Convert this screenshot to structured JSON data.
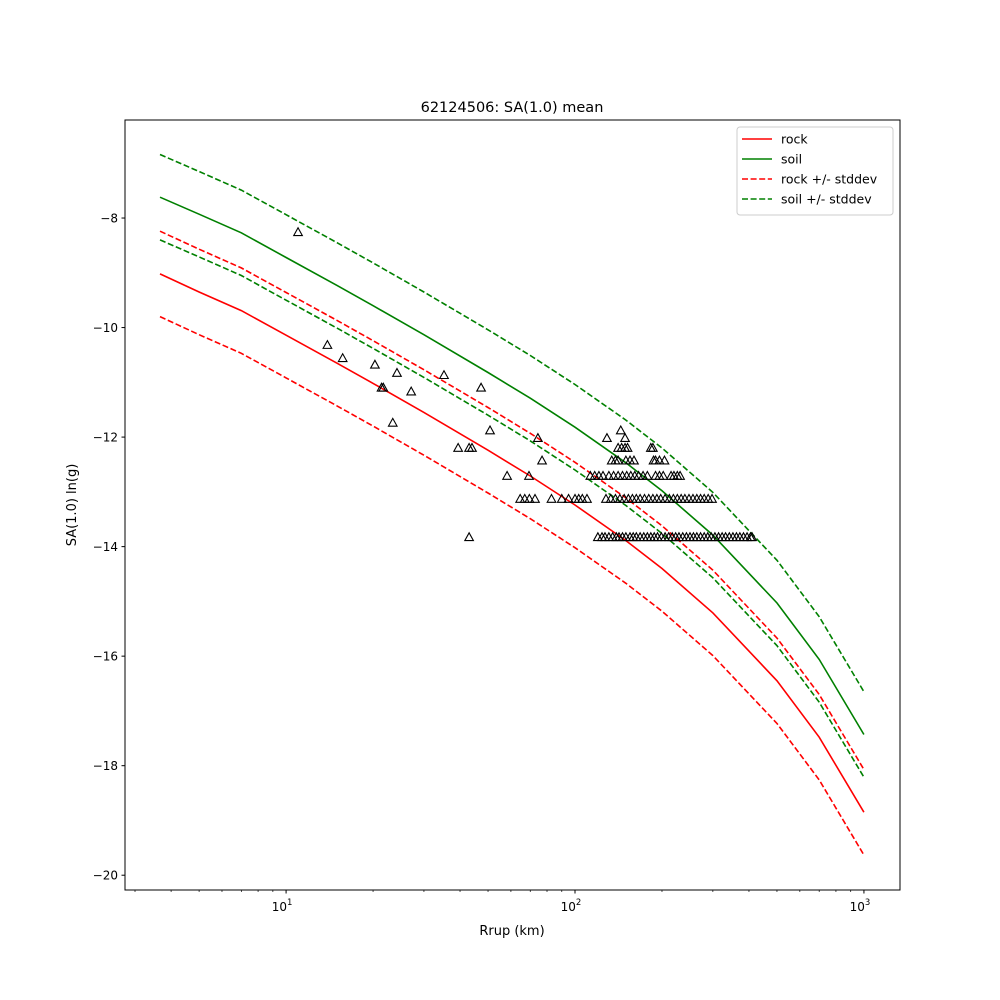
{
  "chart_data": {
    "type": "line",
    "title": "62124506: SA(1.0) mean",
    "xlabel": "Rrup (km)",
    "ylabel": "SA(1.0) ln(g)",
    "xscale": "log",
    "xlim": [
      2.77,
      1333
    ],
    "ylim": [
      -20.27,
      -6.21
    ],
    "xticks": [
      {
        "base": "10",
        "exp": "1",
        "value": 10
      },
      {
        "base": "10",
        "exp": "2",
        "value": 100
      },
      {
        "base": "10",
        "exp": "3",
        "value": 1000
      }
    ],
    "yticks": [
      -8,
      -10,
      -12,
      -14,
      -16,
      -18,
      -20
    ],
    "ytick_labels": [
      "−8",
      "−10",
      "−12",
      "−14",
      "−16",
      "−18",
      "−20"
    ],
    "legend_position": "top-right",
    "x": [
      3.66,
      5,
      7,
      10,
      15,
      20,
      30,
      50,
      70,
      100,
      150,
      200,
      300,
      500,
      700,
      1000
    ],
    "series": [
      {
        "name": "rock",
        "color": "#ff0000",
        "dash": false,
        "values": [
          -9.02,
          -9.35,
          -9.69,
          -10.14,
          -10.65,
          -11.02,
          -11.55,
          -12.24,
          -12.71,
          -13.24,
          -13.89,
          -14.4,
          -15.21,
          -16.45,
          -17.48,
          -18.85
        ]
      },
      {
        "name": "soil",
        "color": "#008000",
        "dash": false,
        "values": [
          -7.62,
          -7.93,
          -8.27,
          -8.72,
          -9.23,
          -9.6,
          -10.13,
          -10.82,
          -11.29,
          -11.82,
          -12.47,
          -12.98,
          -13.79,
          -15.03,
          -16.06,
          -17.43
        ]
      },
      {
        "name": "rock +/- stddev",
        "color": "#ff0000",
        "dash": true,
        "values": [
          -8.24,
          -8.57,
          -8.91,
          -9.36,
          -9.87,
          -10.24,
          -10.77,
          -11.46,
          -11.93,
          -12.46,
          -13.11,
          -13.62,
          -14.43,
          -15.67,
          -16.7,
          -18.07
        ]
      },
      {
        "name": "rock +/- stddev",
        "color": "#ff0000",
        "dash": true,
        "legend": false,
        "values": [
          -9.8,
          -10.13,
          -10.47,
          -10.92,
          -11.43,
          -11.8,
          -12.33,
          -13.02,
          -13.49,
          -14.02,
          -14.67,
          -15.18,
          -15.99,
          -17.23,
          -18.26,
          -19.63
        ]
      },
      {
        "name": "soil +/- stddev",
        "color": "#008000",
        "dash": true,
        "values": [
          -6.84,
          -7.15,
          -7.49,
          -7.94,
          -8.45,
          -8.82,
          -9.35,
          -10.04,
          -10.51,
          -11.04,
          -11.69,
          -12.2,
          -13.01,
          -14.25,
          -15.28,
          -16.65
        ]
      },
      {
        "name": "soil +/- stddev",
        "color": "#008000",
        "dash": true,
        "legend": false,
        "values": [
          -8.4,
          -8.71,
          -9.05,
          -9.5,
          -10.01,
          -10.38,
          -10.91,
          -11.6,
          -12.07,
          -12.6,
          -13.25,
          -13.76,
          -14.57,
          -15.81,
          -16.84,
          -18.21
        ]
      }
    ],
    "legend": [
      "rock",
      "soil",
      "rock +/- stddev",
      "soil +/- stddev"
    ],
    "observations": [
      {
        "y": -8.26,
        "x": [
          11.0
        ]
      },
      {
        "y": -10.32,
        "x": [
          13.9
        ]
      },
      {
        "y": -10.56,
        "x": [
          15.7
        ]
      },
      {
        "y": -10.68,
        "x": [
          20.3
        ]
      },
      {
        "y": -10.83,
        "x": [
          24.2
        ]
      },
      {
        "y": -10.87,
        "x": [
          35.2
        ]
      },
      {
        "y": -11.1,
        "x": [
          21.4,
          21.7,
          47.3
        ]
      },
      {
        "y": -11.17,
        "x": [
          27.1
        ]
      },
      {
        "y": -11.74,
        "x": [
          23.4
        ]
      },
      {
        "y": -11.88,
        "x": [
          50.8,
          144
        ]
      },
      {
        "y": -12.02,
        "x": [
          74.4,
          129,
          149
        ]
      },
      {
        "y": -12.2,
        "x": [
          39.4,
          43,
          44,
          141,
          145,
          149,
          152,
          183,
          186
        ]
      },
      {
        "y": -12.43,
        "x": [
          76.9,
          134,
          138,
          141,
          150,
          155,
          160,
          187,
          190,
          196,
          204
        ]
      },
      {
        "y": -12.71,
        "x": [
          58.2,
          69.3,
          113,
          117,
          121,
          125,
          131,
          136,
          141,
          146,
          151,
          156,
          161,
          166,
          172,
          178,
          190,
          196,
          202,
          215,
          220,
          226,
          231
        ]
      },
      {
        "y": -13.13,
        "x": [
          64.6,
          67,
          69.5,
          72.7,
          82.9,
          90,
          95,
          100,
          103,
          106,
          110,
          128,
          133,
          138,
          143,
          148,
          153,
          158,
          163,
          168,
          174,
          180,
          186,
          192,
          198,
          205,
          212,
          219,
          226,
          233,
          240,
          248,
          256,
          264,
          272,
          280,
          289,
          298
        ]
      },
      {
        "y": -13.83,
        "x": [
          43,
          120,
          124,
          127,
          131,
          135,
          139,
          142,
          146,
          150,
          155,
          159,
          163,
          168,
          173,
          178,
          183,
          188,
          193,
          199,
          205,
          211,
          217,
          223,
          229,
          236,
          243,
          250,
          257,
          264,
          272,
          280,
          288,
          296,
          305,
          314,
          323,
          332,
          342,
          352,
          362,
          372,
          383,
          394,
          405,
          410
        ]
      }
    ]
  }
}
